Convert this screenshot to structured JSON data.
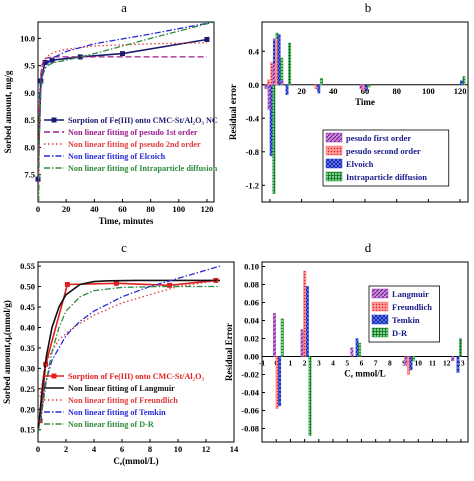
{
  "chart_data": [
    {
      "panel": "a",
      "type": "line",
      "xlabel": "Time, minutes",
      "ylabel": "Sorbed amount, mg/g",
      "xlim": [
        0,
        125
      ],
      "ylim": [
        7.0,
        10.3
      ],
      "xticks": [
        0,
        20,
        40,
        60,
        80,
        100,
        120
      ],
      "yticks": [
        7.5,
        8.0,
        8.5,
        9.0,
        9.5,
        10.0
      ],
      "ytick_labels": [
        "7.5",
        "8.0",
        "8.5",
        "9.0",
        "9.5",
        "10.0"
      ],
      "grid": false,
      "legend_position": "lower-right",
      "series": [
        {
          "name": "Sorption of Fe(III) onto CMC-St/Al₂O₃ NC",
          "style": "solid-square",
          "color": "#1a1a6e",
          "x": [
            0,
            2,
            5,
            10,
            30,
            60,
            120
          ],
          "y": [
            7.42,
            9.22,
            9.56,
            9.6,
            9.66,
            9.72,
            9.98
          ]
        },
        {
          "name": "Non linear fitting of pesudo 1st order",
          "style": "dash",
          "color": "#9b1b8e",
          "x": [
            0,
            1,
            2,
            3,
            5,
            8,
            12,
            20,
            40,
            80,
            120
          ],
          "y": [
            7.0,
            8.7,
            9.33,
            9.52,
            9.63,
            9.65,
            9.66,
            9.66,
            9.66,
            9.66,
            9.66
          ]
        },
        {
          "name": "Non linear fitting of pseudo 2nd order",
          "style": "dot",
          "color": "#e33b3b",
          "x": [
            0,
            1,
            2,
            3,
            5,
            8,
            12,
            20,
            40,
            80,
            120
          ],
          "y": [
            7.0,
            8.9,
            9.35,
            9.5,
            9.62,
            9.7,
            9.75,
            9.8,
            9.86,
            9.9,
            9.92
          ]
        },
        {
          "name": "Non linear fitting of Elcoich",
          "style": "dashdot",
          "color": "#2a2ad6",
          "x": [
            1,
            2,
            3,
            5,
            8,
            12,
            20,
            40,
            80,
            125
          ],
          "y": [
            8.9,
            9.2,
            9.35,
            9.48,
            9.58,
            9.66,
            9.76,
            9.9,
            10.08,
            10.3
          ]
        },
        {
          "name": "Non linear fitting of Intraparticle diffusion",
          "style": "dashdot",
          "color": "#2e8b3a",
          "x": [
            0.5,
            1,
            2,
            3,
            5,
            8,
            12,
            20,
            40,
            80,
            125
          ],
          "y": [
            7.0,
            8.3,
            9.0,
            9.28,
            9.45,
            9.52,
            9.56,
            9.6,
            9.72,
            10.0,
            10.3
          ]
        }
      ]
    },
    {
      "panel": "b",
      "type": "bar",
      "xlabel": "Time",
      "ylabel": "Residual error",
      "xlim": [
        -5,
        125
      ],
      "ylim": [
        -1.4,
        0.75
      ],
      "xticks": [
        0,
        20,
        40,
        60,
        80,
        100,
        120
      ],
      "yticks": [
        0.4,
        0.0,
        -0.4,
        -0.8,
        -1.2
      ],
      "ytick_labels": [
        "0.4",
        "0.0",
        "-0.4",
        "-0.8",
        "-1.2"
      ],
      "grid": false,
      "legend_position": "bottom-right",
      "categories": [
        0,
        2,
        5,
        10,
        30,
        60,
        120
      ],
      "series": [
        {
          "name": "pesudo first order",
          "color": "#a93fc2",
          "hatch": "diag",
          "values": [
            -0.05,
            -0.3,
            0.25,
            0.05,
            0.0,
            -0.05,
            0.0
          ]
        },
        {
          "name": "pesudo second order",
          "color": "#ff6b6b",
          "hatch": "dots",
          "values": [
            0.06,
            0.27,
            0.55,
            0.0,
            -0.05,
            -0.07,
            0.0
          ]
        },
        {
          "name": "Elvoich",
          "color": "#1f3fe0",
          "hatch": "cross",
          "values": [
            -0.85,
            0.55,
            0.6,
            -0.12,
            -0.1,
            -0.07,
            0.05
          ]
        },
        {
          "name": "Intraparticle diffusion",
          "color": "#23a038",
          "hatch": "grid",
          "values": [
            -1.3,
            0.62,
            0.32,
            0.5,
            0.08,
            -0.03,
            0.1
          ]
        }
      ]
    },
    {
      "panel": "c",
      "type": "line",
      "xlabel": "Cₑ(mmol/L)",
      "ylabel": "Sorbed amount,qₑ(mmol/g)",
      "xlim": [
        0,
        14
      ],
      "ylim": [
        0.12,
        0.56
      ],
      "xticks": [
        0,
        2,
        4,
        6,
        8,
        10,
        12,
        14
      ],
      "yticks": [
        0.15,
        0.2,
        0.25,
        0.3,
        0.35,
        0.4,
        0.45,
        0.5,
        0.55
      ],
      "ytick_labels": [
        "0.15",
        "0.20",
        "0.25",
        "0.30",
        "0.35",
        "0.40",
        "0.45",
        "0.50",
        "0.55"
      ],
      "grid": false,
      "legend_position": "lower-right",
      "series": [
        {
          "name": "Sorption of Fe(III) onto CMC-St/Al₂O₃",
          "style": "solid-square",
          "color": "#e02020",
          "x": [
            0.15,
            0.55,
            2.1,
            5.6,
            9.4,
            12.7
          ],
          "y": [
            0.172,
            0.31,
            0.505,
            0.508,
            0.503,
            0.515
          ]
        },
        {
          "name": "Non linear fitting of Langmuir",
          "style": "solid",
          "color": "#111111",
          "x": [
            0,
            0.3,
            0.6,
            1.0,
            1.5,
            2.0,
            3.0,
            4.0,
            5.0,
            7.0,
            9.0,
            11.0,
            13.0
          ],
          "y": [
            0.14,
            0.25,
            0.33,
            0.4,
            0.45,
            0.48,
            0.505,
            0.512,
            0.514,
            0.515,
            0.515,
            0.515,
            0.515
          ]
        },
        {
          "name": "Non linear fitting of Freundlich",
          "style": "dot",
          "color": "#e03a3a",
          "x": [
            0.15,
            0.4,
            0.8,
            1.5,
            2.5,
            4,
            6,
            8,
            10,
            13
          ],
          "y": [
            0.23,
            0.29,
            0.33,
            0.37,
            0.4,
            0.43,
            0.46,
            0.48,
            0.5,
            0.515
          ]
        },
        {
          "name": "Non linear fitting of Temkin",
          "style": "dashdot",
          "color": "#2a2ad6",
          "x": [
            0.2,
            0.5,
            1,
            2,
            3,
            4,
            6,
            8,
            10,
            13
          ],
          "y": [
            0.17,
            0.26,
            0.32,
            0.38,
            0.415,
            0.44,
            0.475,
            0.5,
            0.52,
            0.55
          ]
        },
        {
          "name": "Non linear fitting of D-R",
          "style": "dashdot",
          "color": "#2e8b3a",
          "x": [
            0,
            0.3,
            0.6,
            1.0,
            1.5,
            2.0,
            3.0,
            4.0,
            6.0,
            9.0,
            13.0
          ],
          "y": [
            0.14,
            0.2,
            0.27,
            0.34,
            0.4,
            0.44,
            0.475,
            0.49,
            0.498,
            0.5,
            0.5
          ]
        }
      ]
    },
    {
      "panel": "d",
      "type": "bar",
      "xlabel": "Cₑ mmol/L",
      "ylabel": "Residual Error",
      "xlim": [
        -1,
        13.5
      ],
      "ylim": [
        -0.095,
        0.105
      ],
      "xticks": [
        -1,
        0,
        1,
        2,
        3,
        4,
        5,
        6,
        7,
        8,
        9,
        10,
        11,
        12,
        13
      ],
      "xtick_labels": [
        "-1",
        "0",
        "1",
        "2",
        "3",
        "4",
        "5",
        "6",
        "7",
        "8",
        "9",
        "10",
        "11",
        "12",
        "13"
      ],
      "yticks": [
        0.1,
        0.08,
        0.06,
        0.04,
        0.02,
        0.0,
        -0.02,
        -0.04,
        -0.06,
        -0.08
      ],
      "ytick_labels": [
        "0.10",
        "0.08",
        "0.06",
        "0.04",
        "0.02",
        "0.00",
        "-0.02",
        "-0.04",
        "-0.06",
        "-0.08"
      ],
      "grid": false,
      "legend_position": "top-right",
      "categories": [
        0.15,
        2.1,
        5.6,
        9.4,
        12.7
      ],
      "series": [
        {
          "name": "Langmuir",
          "color": "#a93fc2",
          "hatch": "diag",
          "values": [
            0.048,
            0.03,
            0.01,
            -0.01,
            -0.005
          ]
        },
        {
          "name": "Freundlich",
          "color": "#ff6b6b",
          "hatch": "dots",
          "values": [
            -0.058,
            0.095,
            0.0,
            -0.02,
            0.0
          ]
        },
        {
          "name": "Temkin",
          "color": "#1f3fe0",
          "hatch": "cross",
          "values": [
            -0.055,
            0.078,
            0.02,
            -0.015,
            -0.018
          ]
        },
        {
          "name": "D-R",
          "color": "#23a038",
          "hatch": "grid",
          "values": [
            0.042,
            -0.088,
            0.015,
            -0.005,
            0.02
          ]
        }
      ]
    }
  ],
  "panels": {
    "a": {
      "label": "a"
    },
    "b": {
      "label": "b"
    },
    "c": {
      "label": "c"
    },
    "d": {
      "label": "d"
    }
  }
}
